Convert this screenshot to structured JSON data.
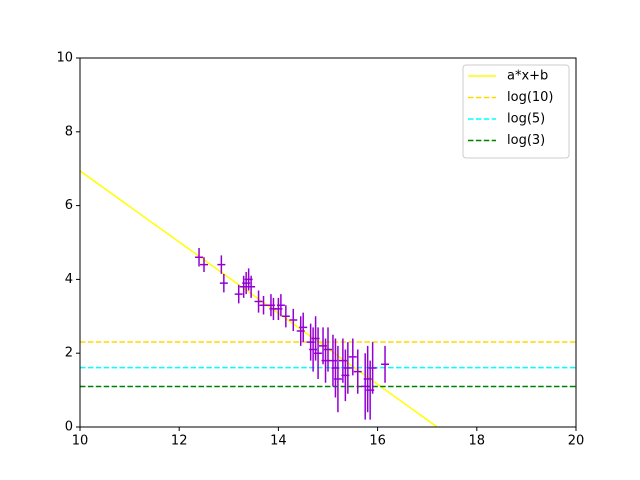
{
  "chart_data": {
    "type": "errorbar",
    "xlim": [
      10,
      20
    ],
    "ylim": [
      0,
      10
    ],
    "xticks": [
      10,
      12,
      14,
      16,
      18,
      20
    ],
    "yticks": [
      0,
      2,
      4,
      6,
      8,
      10
    ],
    "legend": "upper right",
    "series": [
      {
        "name": "a*x+b",
        "color": "#ffff00",
        "style": "solid",
        "x": [
          10,
          17.2
        ],
        "values": [
          6.94,
          0
        ]
      },
      {
        "name": "log(10)",
        "color": "#ffd700",
        "style": "dashed",
        "x": [
          10,
          20
        ],
        "values": [
          2.303,
          2.303
        ]
      },
      {
        "name": "log(5)",
        "color": "#00ffff",
        "style": "dashed",
        "x": [
          10,
          20
        ],
        "values": [
          1.609,
          1.609
        ]
      },
      {
        "name": "log(3)",
        "color": "#008000",
        "style": "dashed",
        "x": [
          10,
          20
        ],
        "values": [
          1.099,
          1.099
        ]
      }
    ],
    "points": {
      "color": "#9400d3",
      "x": [
        12.4,
        12.5,
        12.85,
        12.9,
        13.2,
        13.3,
        13.35,
        13.4,
        13.45,
        13.6,
        13.7,
        13.85,
        13.9,
        14.0,
        14.05,
        14.15,
        14.3,
        14.45,
        14.5,
        14.65,
        14.7,
        14.75,
        14.8,
        14.9,
        14.95,
        15.0,
        15.1,
        15.15,
        15.2,
        15.3,
        15.35,
        15.4,
        15.5,
        15.6,
        15.75,
        15.8,
        15.85,
        15.9,
        16.15
      ],
      "values": [
        4.6,
        4.4,
        4.4,
        3.9,
        3.6,
        3.8,
        3.9,
        4.0,
        3.8,
        3.4,
        3.3,
        3.3,
        3.2,
        3.2,
        3.3,
        3.0,
        2.9,
        2.6,
        2.7,
        2.3,
        2.1,
        2.4,
        2.0,
        2.2,
        1.8,
        2.1,
        1.8,
        1.6,
        1.3,
        1.8,
        1.4,
        1.6,
        1.9,
        1.5,
        1.1,
        1.3,
        1.0,
        1.6,
        1.7
      ],
      "errors": [
        0.25,
        0.2,
        0.25,
        0.25,
        0.25,
        0.3,
        0.3,
        0.3,
        0.3,
        0.3,
        0.25,
        0.3,
        0.3,
        0.3,
        0.3,
        0.3,
        0.3,
        0.4,
        0.4,
        0.5,
        0.6,
        0.6,
        0.7,
        0.5,
        0.6,
        0.6,
        0.7,
        0.8,
        0.9,
        0.6,
        0.7,
        0.7,
        0.5,
        0.6,
        0.9,
        0.9,
        0.8,
        0.7,
        0.5
      ]
    }
  }
}
